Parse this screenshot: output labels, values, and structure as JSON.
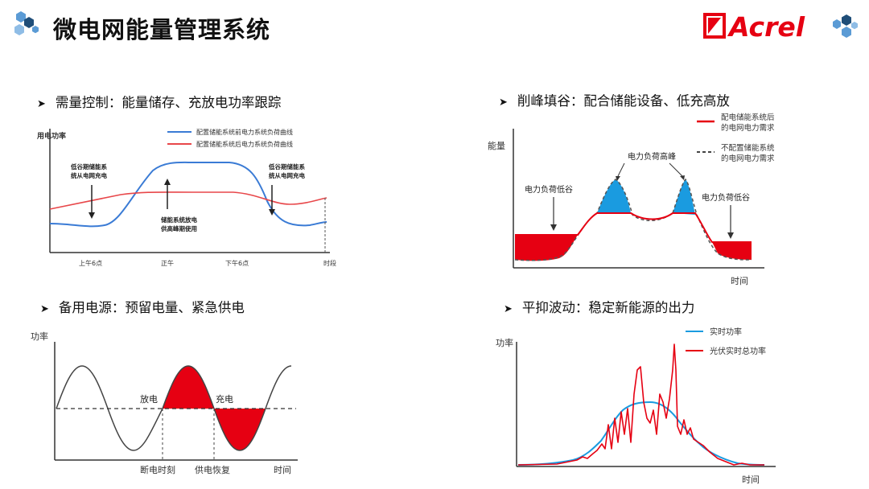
{
  "title": "微电网能量管理系统",
  "logo": {
    "text": "Acrel",
    "color": "#e60012"
  },
  "colors": {
    "red": "#e60012",
    "blue": "#3a7bd5",
    "hex_blue": "#5b9bd5",
    "hex_navy": "#1f4e79",
    "light_blue": "#1a9be0"
  },
  "sections": {
    "demand": {
      "title": "需量控制：能量储存、充放电功率跟踪",
      "y_label": "用电功率",
      "legend": [
        "配置储能系统前电力系统负荷曲线",
        "配置储能系统后电力系统负荷曲线"
      ],
      "annotations": [
        "低谷期储能系统从电网充电",
        "储能系统放电供高峰期使用",
        "低谷期储能系统从电网充电"
      ],
      "annotations_lines": [
        [
          "低谷期储能系",
          "统从电网充电"
        ],
        [
          "储能系统放电",
          "供高峰期使用"
        ],
        [
          "低谷期储能系",
          "统从电网充电"
        ]
      ],
      "x_ticks": [
        "上午6点",
        "正午",
        "下午6点",
        "时段"
      ]
    },
    "peak": {
      "title": "削峰填谷：配合储能设备、低充高放",
      "y_label": "能量",
      "x_label": "时间",
      "legend": [
        "配电储能系统后的电网电力需求",
        "不配置储能系统的电网电力需求"
      ],
      "legend_lines": [
        [
          "配电储能系统后",
          "的电网电力需求"
        ],
        [
          "不配置储能系统",
          "的电网电力需求"
        ]
      ],
      "annotations": [
        "电力负荷低谷",
        "电力负荷高峰",
        "电力负荷低谷"
      ]
    },
    "backup": {
      "title": "备用电源：预留电量、紧急供电",
      "y_label": "功率",
      "x_label": "时间",
      "annotations": [
        "放电",
        "充电"
      ],
      "x_ticks": [
        "断电时刻",
        "供电恢复"
      ]
    },
    "smooth": {
      "title": "平抑波动：稳定新能源的出力",
      "y_label": "功率",
      "x_label": "时间",
      "legend": [
        "实时功率",
        "光伏实时总功率"
      ]
    }
  }
}
